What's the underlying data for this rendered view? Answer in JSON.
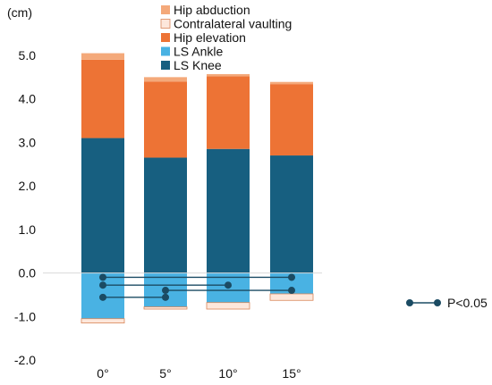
{
  "chart_data": {
    "type": "bar",
    "stacked": true,
    "unit_label": "(cm)",
    "categories": [
      "0°",
      "5°",
      "10°",
      "15°"
    ],
    "ylim": [
      -2.0,
      5.0
    ],
    "yticks": [
      "5.0",
      "4.0",
      "3.0",
      "2.0",
      "1.0",
      "0.0",
      "-1.0",
      "-2.0"
    ],
    "grid": false,
    "legend_position": "top",
    "series": [
      {
        "name": "Hip abduction",
        "color": "#F4A97A",
        "values": [
          0.15,
          0.1,
          0.05,
          0.05
        ]
      },
      {
        "name": "Contralateral vaulting",
        "color": "#FDE7DB",
        "values": [
          -0.1,
          -0.05,
          -0.15,
          -0.15
        ]
      },
      {
        "name": "Hip elevation",
        "color": "#ED7335",
        "values": [
          1.8,
          1.75,
          1.67,
          1.64
        ]
      },
      {
        "name": "LS Ankle",
        "color": "#49B2E3",
        "values": [
          -1.05,
          -0.78,
          -0.68,
          -0.48
        ]
      },
      {
        "name": "LS Knee",
        "color": "#175F80",
        "values": [
          3.1,
          2.65,
          2.85,
          2.7
        ]
      }
    ],
    "significance": {
      "label": "P<0.05",
      "color": "#1B4B63",
      "pairs": [
        {
          "from": "0°",
          "to": "15°",
          "y": -0.1
        },
        {
          "from": "0°",
          "to": "10°",
          "y": -0.28
        },
        {
          "from": "5°",
          "to": "15°",
          "y": -0.4
        },
        {
          "from": "0°",
          "to": "5°",
          "y": -0.56
        }
      ]
    }
  }
}
